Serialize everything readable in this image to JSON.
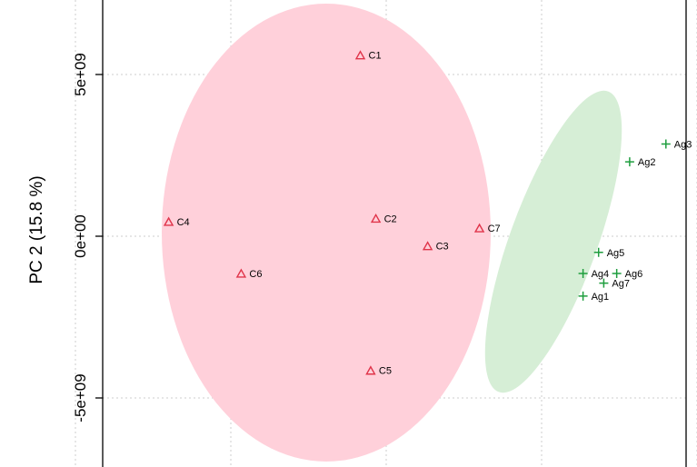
{
  "chart_data": {
    "type": "scatter",
    "title": "",
    "xlabel": "",
    "ylabel": "PC 2 (15.8 %)",
    "ylim": [
      -6250000000.0,
      7300000000.0
    ],
    "yticks": [
      {
        "value": 5000000000.0,
        "label": "5e+09"
      },
      {
        "value": 0,
        "label": "0e+00"
      },
      {
        "value": -5000000000.0,
        "label": "-5e+09"
      }
    ],
    "x_gridlines": [
      -4000000000.0,
      -1000000000.0,
      2000000000.0,
      5000000000.0,
      8000000000.0,
      11000000000.0
    ],
    "grid": true,
    "series": [
      {
        "group": "C",
        "marker": "triangle",
        "color": "#e0344a",
        "ellipse_color": "#ffd0da",
        "points": [
          {
            "label": "C1",
            "x": 1500000000.0,
            "y": 5600000000.0
          },
          {
            "label": "C2",
            "x": 1800000000.0,
            "y": 550000000.0
          },
          {
            "label": "C3",
            "x": 2800000000.0,
            "y": -300000000.0
          },
          {
            "label": "C4",
            "x": -2200000000.0,
            "y": 450000000.0
          },
          {
            "label": "C5",
            "x": 1700000000.0,
            "y": -4150000000.0
          },
          {
            "label": "C6",
            "x": -800000000.0,
            "y": -1150000000.0
          },
          {
            "label": "C7",
            "x": 3800000000.0,
            "y": 250000000.0
          }
        ]
      },
      {
        "group": "Ag",
        "marker": "plus",
        "color": "#1e9e3e",
        "ellipse_color": "#d6eed6",
        "points": [
          {
            "label": "Ag1",
            "x": 5800000000.0,
            "y": -1850000000.0
          },
          {
            "label": "Ag2",
            "x": 6700000000.0,
            "y": 2300000000.0
          },
          {
            "label": "Ag3",
            "x": 7400000000.0,
            "y": 2850000000.0
          },
          {
            "label": "Ag4",
            "x": 5800000000.0,
            "y": -1150000000.0
          },
          {
            "label": "Ag5",
            "x": 6100000000.0,
            "y": -500000000.0
          },
          {
            "label": "Ag6",
            "x": 6450000000.0,
            "y": -1150000000.0
          },
          {
            "label": "Ag7",
            "x": 6200000000.0,
            "y": -1450000000.0
          }
        ]
      }
    ]
  }
}
